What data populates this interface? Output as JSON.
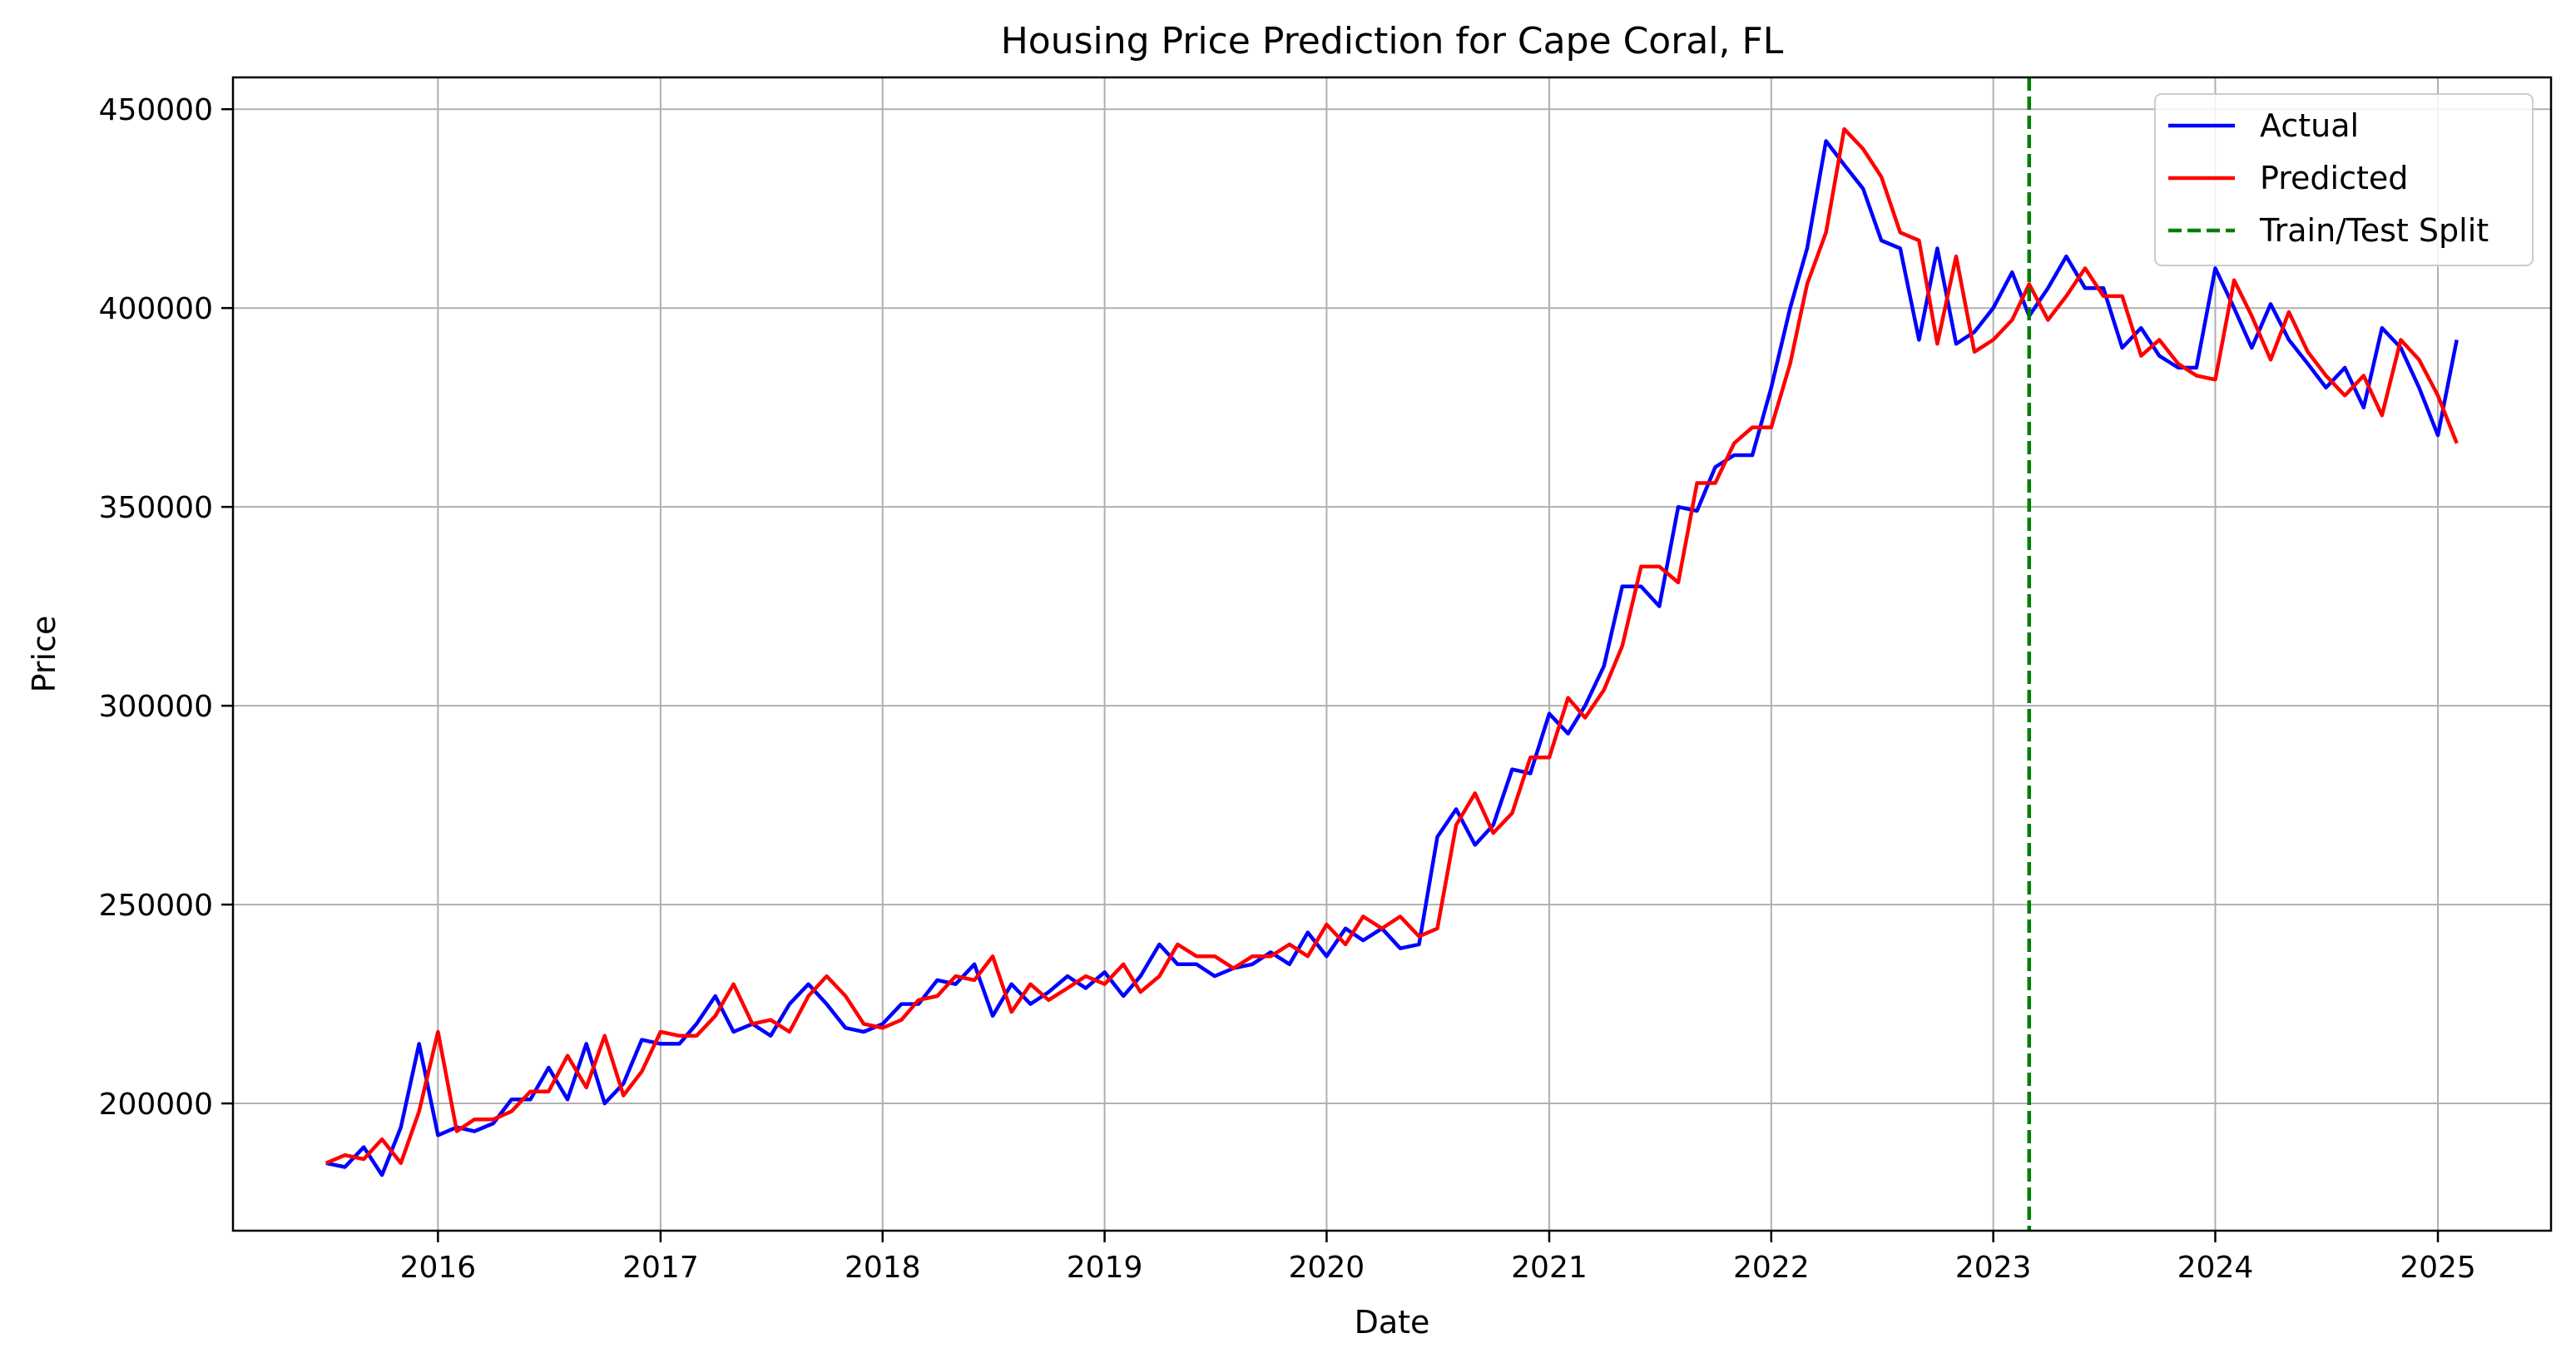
{
  "chart_data": {
    "type": "line",
    "title": "Housing Price Prediction for Cape Coral, FL",
    "xlabel": "Date",
    "ylabel": "Price",
    "x_start": "2015-07",
    "x_frequency": "monthly",
    "xlim": [
      "2015-01-29",
      "2025-07-06"
    ],
    "ylim": [
      168000,
      458000
    ],
    "xticks": [
      "2016",
      "2017",
      "2018",
      "2019",
      "2020",
      "2021",
      "2022",
      "2023",
      "2024",
      "2025"
    ],
    "yticks": [
      200000,
      250000,
      300000,
      350000,
      400000,
      450000
    ],
    "grid": true,
    "legend_position": "top-right",
    "series": [
      {
        "name": "Actual",
        "color": "#0000ff",
        "values": [
          185000,
          184000,
          189000,
          182000,
          194000,
          215000,
          192000,
          194000,
          193000,
          195000,
          201000,
          201000,
          209000,
          201000,
          215000,
          200000,
          205000,
          216000,
          215000,
          215000,
          220000,
          227000,
          218000,
          220000,
          217000,
          225000,
          230000,
          225000,
          219000,
          218000,
          220000,
          225000,
          225000,
          231000,
          230000,
          235000,
          222000,
          230000,
          225000,
          228000,
          232000,
          229000,
          233000,
          227000,
          232000,
          240000,
          235000,
          235000,
          232000,
          234000,
          235000,
          238000,
          235000,
          243000,
          237000,
          244000,
          241000,
          244000,
          239000,
          240000,
          267000,
          274000,
          265000,
          270000,
          284000,
          283000,
          298000,
          293000,
          300000,
          310000,
          330000,
          330000,
          325000,
          350000,
          349000,
          360000,
          363000,
          363000,
          380000,
          400000,
          415000,
          442000,
          436000,
          430000,
          417000,
          415000,
          392000,
          415000,
          391000,
          394000,
          400000,
          409000,
          398000,
          405000,
          413000,
          405000,
          405000,
          390000,
          395000,
          388000,
          385000,
          385000,
          410000,
          400000,
          390000,
          401000,
          392000,
          386000,
          380000,
          385000,
          375000,
          395000,
          390000,
          380000,
          368000,
          392000
        ]
      },
      {
        "name": "Predicted",
        "color": "#ff0000",
        "values": [
          185000,
          187000,
          186000,
          191000,
          185000,
          198000,
          218000,
          193000,
          196000,
          196000,
          198000,
          203000,
          203000,
          212000,
          204000,
          217000,
          202000,
          208000,
          218000,
          217000,
          217000,
          222000,
          230000,
          220000,
          221000,
          218000,
          227000,
          232000,
          227000,
          220000,
          219000,
          221000,
          226000,
          227000,
          232000,
          231000,
          237000,
          223000,
          230000,
          226000,
          229000,
          232000,
          230000,
          235000,
          228000,
          232000,
          240000,
          237000,
          237000,
          234000,
          237000,
          237000,
          240000,
          237000,
          245000,
          240000,
          247000,
          244000,
          247000,
          242000,
          244000,
          270000,
          278000,
          268000,
          273000,
          287000,
          287000,
          302000,
          297000,
          304000,
          315000,
          335000,
          335000,
          331000,
          356000,
          356000,
          366000,
          370000,
          370000,
          386000,
          406000,
          419000,
          445000,
          440000,
          433000,
          419000,
          417000,
          391000,
          413000,
          389000,
          392000,
          397000,
          406000,
          397000,
          403000,
          410000,
          403000,
          403000,
          388000,
          392000,
          386000,
          383000,
          382000,
          407000,
          398000,
          387000,
          399000,
          389000,
          383000,
          378000,
          383000,
          373000,
          392000,
          387000,
          378000,
          366000
        ]
      }
    ],
    "vline": {
      "name": "Train/Test Split",
      "x": "2023-03",
      "color": "#008000",
      "style": "dashed"
    },
    "plot_background": "#ffffff"
  }
}
